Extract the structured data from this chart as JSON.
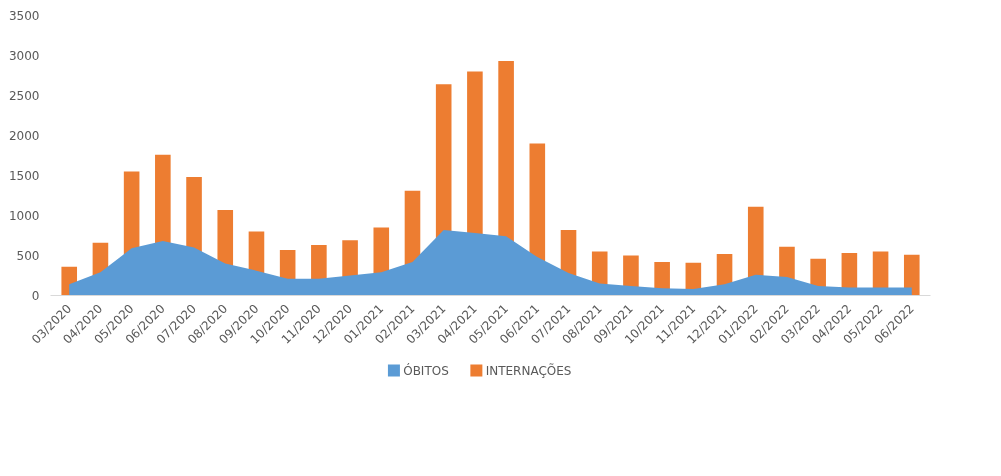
{
  "chart_data": {
    "type": "bar",
    "categories": [
      "03/2020",
      "04/2020",
      "05/2020",
      "06/2020",
      "07/2020",
      "08/2020",
      "09/2020",
      "10/2020",
      "11/2020",
      "12/2020",
      "01/2021",
      "02/2021",
      "03/2021",
      "04/2021",
      "05/2021",
      "06/2021",
      "07/2021",
      "08/2021",
      "09/2021",
      "10/2021",
      "11/2021",
      "12/2021",
      "01/2022",
      "02/2022",
      "03/2022",
      "04/2022",
      "05/2022",
      "06/2022"
    ],
    "series": [
      {
        "name": "ÓBITOS",
        "type": "area",
        "color": "#5b9bd5",
        "values": [
          140,
          290,
          590,
          680,
          600,
          400,
          310,
          210,
          210,
          250,
          290,
          420,
          820,
          780,
          740,
          480,
          280,
          150,
          120,
          90,
          80,
          140,
          260,
          230,
          120,
          100,
          100,
          100
        ]
      },
      {
        "name": "INTERNAÇÕES",
        "color": "#ed7d31",
        "values": [
          360,
          660,
          1550,
          1760,
          1480,
          1070,
          800,
          570,
          630,
          690,
          850,
          1310,
          2640,
          2800,
          2930,
          1900,
          820,
          550,
          500,
          420,
          410,
          520,
          1110,
          610,
          460,
          530,
          550,
          510
        ]
      }
    ],
    "ylim": [
      0,
      3500
    ],
    "yticks": [
      0,
      500,
      1000,
      1500,
      2000,
      2500,
      3000,
      3500
    ],
    "legend": "bottom"
  }
}
